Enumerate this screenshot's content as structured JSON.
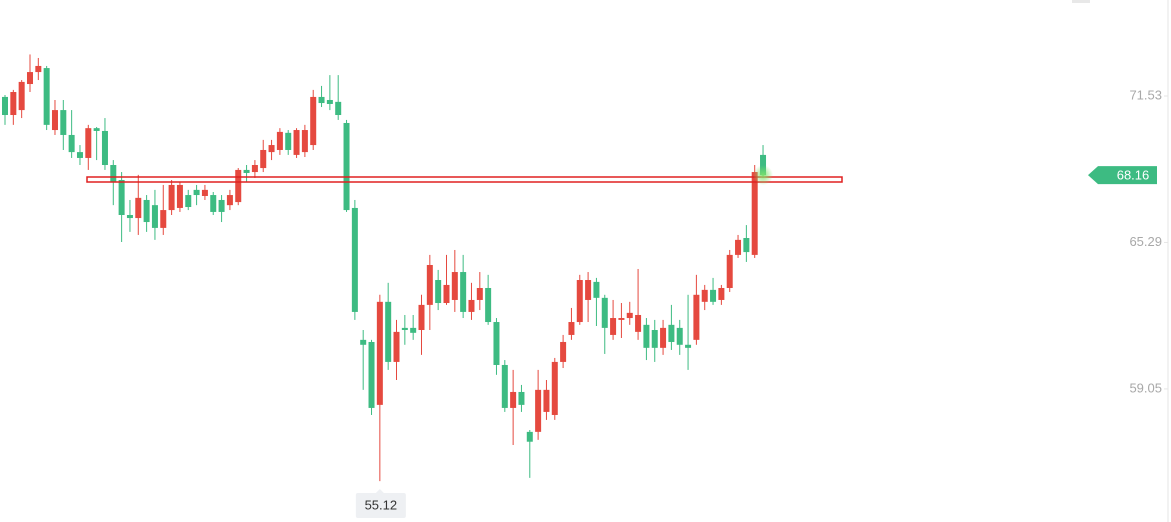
{
  "chart_data": {
    "type": "candlestick",
    "up_color": "#e5493f",
    "down_color": "#3dbb82",
    "ylim": [
      53.38,
      75.62
    ],
    "yticks": [
      71.53,
      65.29,
      59.05
    ],
    "last_price": 68.16,
    "low_price": 55.12,
    "open": [
      71.49,
      70.72,
      70.93,
      72.04,
      72.55,
      72.72,
      70.08,
      70.93,
      69.87,
      69.14,
      68.89,
      70.16,
      70.04,
      68.59,
      67.95,
      66.46,
      66.33,
      67.1,
      66.88,
      65.91,
      66.67,
      66.76,
      67.31,
      67.53,
      67.27,
      67.31,
      67.1,
      66.88,
      67.01,
      68.38,
      68.29,
      68.46,
      69.14,
      69.23,
      69.96,
      69.02,
      69.14,
      69.44,
      71.49,
      71.36,
      71.28,
      70.38,
      66.76,
      61.14,
      61.05,
      58.37,
      62.76,
      60.2,
      61.65,
      61.65,
      61.56,
      62.63,
      63.69,
      62.71,
      62.84,
      64.03,
      62.33,
      62.84,
      63.35,
      61.9,
      60.07,
      58.24,
      58.92,
      57.22,
      57.22,
      58.07,
      57.94,
      60.2,
      61.35,
      61.9,
      62.84,
      63.61,
      62.93,
      61.35,
      61.99,
      62.07,
      61.48,
      61.78,
      61.56,
      60.8,
      61.78,
      61.65,
      60.93,
      61.14,
      62.76,
      63.27,
      62.84,
      63.35,
      64.76,
      65.48,
      64.76,
      69.02
    ],
    "high": [
      71.57,
      71.79,
      72.21,
      73.3,
      73.15,
      72.81,
      71.36,
      71.36,
      70.93,
      69.44,
      70.3,
      70.21,
      70.59,
      68.8,
      68.29,
      67.1,
      68.17,
      67.31,
      67.53,
      67.74,
      67.95,
      67.87,
      67.53,
      67.74,
      67.74,
      67.44,
      67.31,
      67.53,
      68.46,
      68.59,
      68.8,
      69.66,
      69.66,
      70.16,
      70.08,
      70.16,
      70.3,
      71.79,
      71.96,
      72.42,
      72.42,
      70.51,
      67.1,
      61.56,
      61.14,
      63.06,
      63.57,
      61.99,
      62.2,
      62.2,
      63.06,
      64.76,
      64.12,
      64.76,
      64.97,
      64.76,
      63.57,
      64.03,
      63.91,
      62.07,
      60.28,
      59.86,
      59.22,
      57.3,
      59.86,
      59.43,
      60.37,
      61.35,
      62.5,
      63.91,
      64.03,
      63.78,
      63.06,
      62.84,
      62.71,
      62.76,
      64.16,
      62.07,
      61.99,
      61.99,
      62.63,
      61.99,
      63.06,
      63.91,
      63.48,
      63.78,
      63.48,
      64.97,
      65.61,
      66.03,
      68.59,
      69.44
    ],
    "low": [
      70.3,
      70.3,
      70.59,
      71.7,
      72.21,
      70.08,
      69.87,
      69.23,
      68.89,
      68.59,
      68.38,
      68.8,
      68.38,
      66.88,
      65.31,
      65.74,
      65.61,
      65.74,
      65.4,
      65.61,
      66.46,
      66.59,
      66.67,
      66.88,
      67.1,
      66.46,
      66.16,
      66.67,
      66.88,
      67.87,
      68.04,
      68.29,
      68.8,
      69.02,
      69.02,
      68.89,
      68.93,
      69.23,
      71.06,
      70.93,
      70.51,
      66.59,
      61.99,
      59.01,
      57.94,
      55.12,
      59.86,
      59.43,
      60.93,
      61.14,
      60.5,
      61.56,
      62.41,
      62.63,
      62.33,
      62.07,
      61.99,
      62.41,
      61.78,
      59.65,
      58.07,
      56.66,
      58.07,
      55.26,
      56.88,
      57.73,
      57.73,
      59.94,
      61.14,
      61.78,
      61.9,
      61.73,
      60.54,
      61.14,
      61.22,
      61.78,
      61.14,
      60.28,
      60.2,
      60.5,
      60.71,
      60.5,
      59.86,
      60.93,
      62.41,
      62.63,
      62.63,
      63.18,
      64.63,
      64.46,
      64.63,
      68.04
    ],
    "close": [
      70.72,
      71.7,
      72.13,
      72.55,
      72.81,
      70.3,
      70.93,
      69.87,
      69.14,
      68.89,
      70.16,
      70.04,
      68.59,
      67.87,
      66.46,
      66.33,
      67.19,
      66.16,
      65.91,
      66.67,
      67.74,
      67.74,
      66.8,
      67.31,
      67.53,
      66.59,
      66.59,
      67.31,
      68.38,
      68.25,
      68.59,
      69.23,
      69.44,
      70.0,
      69.23,
      70.08,
      70.08,
      71.49,
      71.23,
      71.19,
      70.72,
      66.67,
      62.33,
      60.93,
      58.24,
      62.76,
      60.2,
      61.48,
      61.56,
      61.44,
      62.63,
      64.33,
      62.71,
      63.48,
      64.03,
      62.33,
      62.84,
      63.35,
      61.9,
      60.07,
      58.24,
      58.92,
      58.37,
      56.8,
      59.01,
      59.01,
      60.2,
      61.05,
      61.9,
      63.69,
      63.69,
      62.93,
      61.65,
      62.07,
      62.07,
      62.29,
      62.2,
      60.8,
      60.8,
      61.65,
      61.05,
      60.93,
      60.8,
      63.06,
      63.27,
      62.76,
      63.35,
      64.76,
      65.4,
      64.88,
      68.29,
      68.16
    ]
  }
}
